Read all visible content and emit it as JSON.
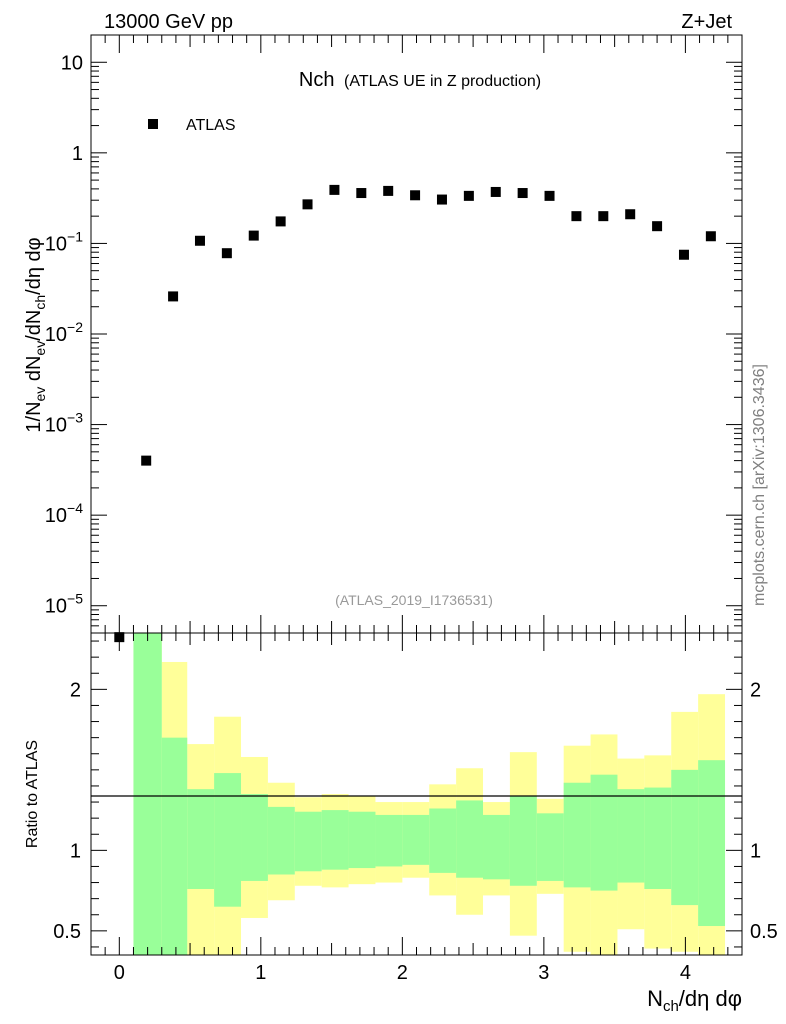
{
  "header": {
    "left": "13000 GeV pp",
    "right": "Z+Jet"
  },
  "side_label": "mcplots.cern.ch [arXiv:1306.3436]",
  "chart_data": [
    {
      "type": "scatter",
      "title_main": "Nch",
      "title_sub": "(ATLAS UE in Z production)",
      "analysis_label": "(ATLAS_2019_I1736531)",
      "ylabel": "1/N_ev dN_ev/dN_ch/dη dφ",
      "xlabel": "N_ch/dη dφ",
      "yscale": "log",
      "xlim": [
        -0.2,
        4.4
      ],
      "ylim": [
        5e-06,
        20
      ],
      "legend": {
        "position": "top-left",
        "entries": [
          "ATLAS"
        ]
      },
      "y_tick_labels": [
        "10^-5",
        "10^-4",
        "10^-3",
        "10^-2",
        "10^-1",
        "1",
        "10"
      ],
      "series": [
        {
          "name": "ATLAS",
          "x": [
            0.0,
            0.19,
            0.38,
            0.57,
            0.76,
            0.95,
            1.14,
            1.33,
            1.52,
            1.71,
            1.9,
            2.09,
            2.28,
            2.47,
            2.66,
            2.85,
            3.04,
            3.23,
            3.42,
            3.61,
            3.8,
            3.99,
            4.18
          ],
          "values": [
            4.5e-06,
            0.0004,
            0.026,
            0.107,
            0.078,
            0.122,
            0.175,
            0.27,
            0.39,
            0.36,
            0.38,
            0.34,
            0.305,
            0.335,
            0.37,
            0.36,
            0.335,
            0.2,
            0.2,
            0.21,
            0.155,
            0.075,
            0.12
          ]
        }
      ]
    },
    {
      "type": "area",
      "ylabel": "Ratio to ATLAS",
      "xlabel": "N_ch/dη dφ",
      "xlim": [
        -0.2,
        4.4
      ],
      "ylim": [
        0.35,
        2.35
      ],
      "x_ticks": [
        "0",
        "1",
        "2",
        "3",
        "4"
      ],
      "y_ticks": [
        "0.5",
        "1",
        "2"
      ],
      "reference_line": 1,
      "bin_edges": [
        0.1,
        0.3,
        0.48,
        0.67,
        0.86,
        1.05,
        1.24,
        1.43,
        1.62,
        1.81,
        2.0,
        2.19,
        2.38,
        2.57,
        2.76,
        2.95,
        3.14,
        3.33,
        3.52,
        3.71,
        3.9,
        4.09,
        4.28
      ],
      "bands": [
        {
          "name": "stat",
          "color": "#99ff99",
          "upper": [
            2.5,
            1.7,
            1.38,
            1.48,
            1.35,
            1.27,
            1.24,
            1.25,
            1.24,
            1.22,
            1.22,
            1.26,
            1.31,
            1.22,
            1.34,
            1.23,
            1.42,
            1.47,
            1.38,
            1.39,
            1.5,
            1.56
          ],
          "lower": [
            0.3,
            0.3,
            0.76,
            0.65,
            0.81,
            0.85,
            0.87,
            0.88,
            0.89,
            0.9,
            0.91,
            0.86,
            0.83,
            0.82,
            0.78,
            0.81,
            0.77,
            0.75,
            0.8,
            0.76,
            0.66,
            0.53
          ]
        },
        {
          "name": "total",
          "color": "#ffff99",
          "upper": [
            2.5,
            2.17,
            1.66,
            1.83,
            1.58,
            1.42,
            1.33,
            1.35,
            1.34,
            1.3,
            1.3,
            1.41,
            1.51,
            1.3,
            1.61,
            1.32,
            1.65,
            1.72,
            1.57,
            1.59,
            1.86,
            1.97
          ],
          "lower": [
            0.3,
            0.3,
            0.35,
            0.34,
            0.58,
            0.69,
            0.78,
            0.77,
            0.79,
            0.8,
            0.83,
            0.72,
            0.6,
            0.72,
            0.47,
            0.73,
            0.37,
            0.34,
            0.51,
            0.39,
            0.37,
            0.3
          ]
        }
      ]
    }
  ]
}
